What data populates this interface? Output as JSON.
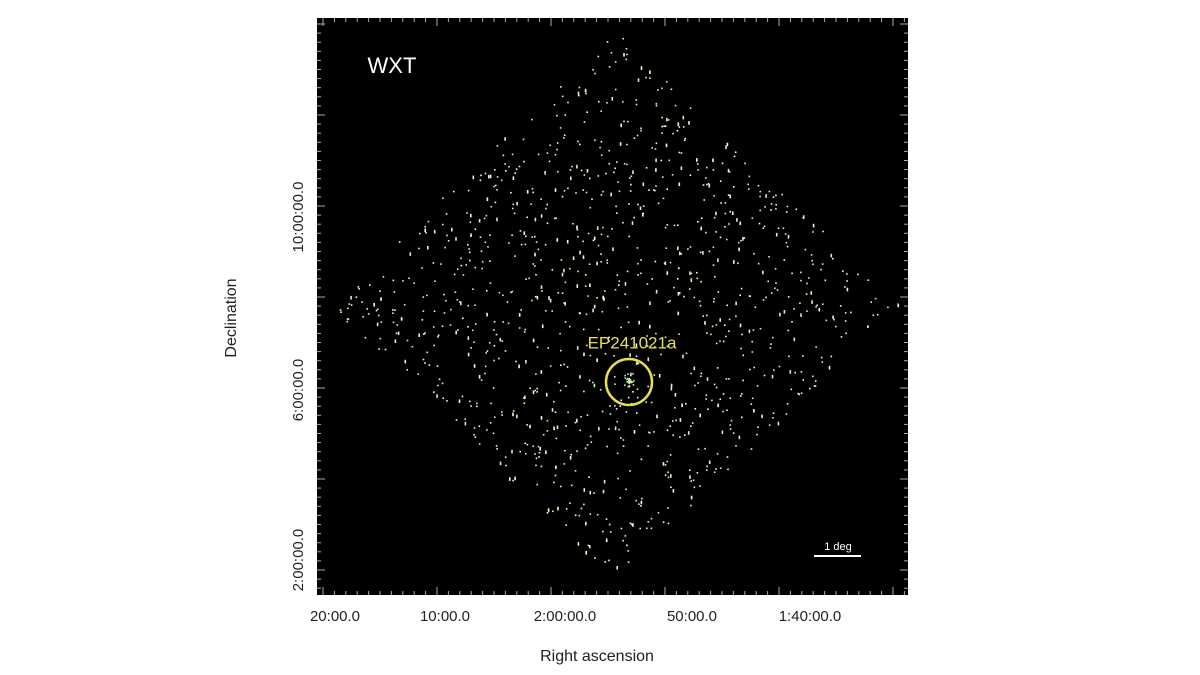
{
  "image": {
    "title": "WXT",
    "source_label": "EP241021a",
    "scale_bar": "1 deg",
    "x_axis": {
      "title": "Right ascension",
      "ticks": [
        "20:00.0",
        "10:00.0",
        "2:00:00.0",
        "50:00.0",
        "1:40:00.0"
      ]
    },
    "y_axis": {
      "title": "Declination",
      "ticks": [
        "10:00:00.0",
        "6:00:00.0",
        "2:00:00.0"
      ]
    }
  }
}
